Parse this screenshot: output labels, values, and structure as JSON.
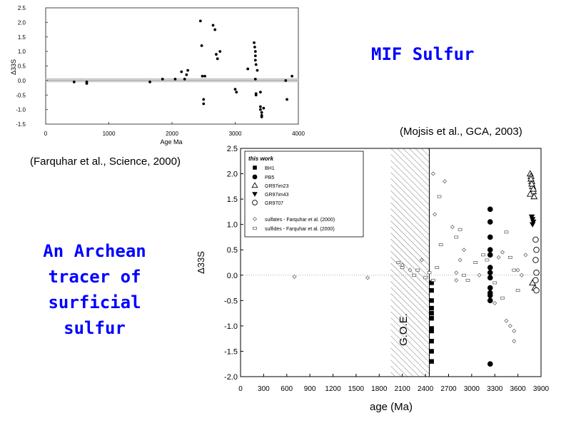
{
  "header": {
    "title": "MIF Sulfur"
  },
  "citations": {
    "mojsis": "(Mojsis et al., GCA, 2003)",
    "farquhar": "(Farquhar et al., Science, 2000)"
  },
  "tagline": {
    "line1": "An Archean",
    "line2": "tracer of",
    "line3": "surficial sulfur"
  },
  "colors": {
    "accent": "#0000ff"
  },
  "chart_data": [
    {
      "type": "scatter",
      "xlabel": "Age Ma",
      "ylabel": "Δ33S",
      "xlim": [
        0,
        4000
      ],
      "ylim": [
        -1.5,
        2.5
      ],
      "xticks": [
        "0",
        "1000",
        "2000",
        "3000",
        "4000"
      ],
      "yticks": [
        "-1.5",
        "-1.0",
        "-0.5",
        "0.0",
        "0.5",
        "1.0",
        "1.5",
        "2.0",
        "2.5"
      ],
      "series": [
        {
          "x": [
            450,
            650,
            650,
            1650,
            1850,
            2050,
            2150,
            2200,
            2230,
            2250,
            2450,
            2470,
            2480,
            2500,
            2500,
            2520,
            2650,
            2680,
            2700,
            2720,
            2760,
            3000,
            3020,
            3200,
            3300,
            3310,
            3320,
            3320,
            3320,
            3330,
            3320,
            3330,
            3330,
            3350,
            3400,
            3400,
            3400,
            3420,
            3420,
            3420,
            3450,
            3800,
            3820,
            3900
          ],
          "y": [
            -0.05,
            -0.05,
            -0.1,
            -0.05,
            0.05,
            0.05,
            0.3,
            0.05,
            0.2,
            0.35,
            2.05,
            1.2,
            0.15,
            -0.65,
            -0.8,
            0.15,
            1.9,
            1.75,
            0.9,
            0.75,
            1.0,
            -0.3,
            -0.4,
            0.4,
            1.3,
            1.15,
            1.0,
            0.85,
            0.7,
            0.55,
            0.05,
            -0.45,
            -0.5,
            0.35,
            -0.4,
            -0.9,
            -1.0,
            -1.1,
            -1.2,
            -1.25,
            -0.95,
            0.0,
            -0.65,
            0.15
          ]
        }
      ]
    },
    {
      "type": "scatter",
      "xlabel": "age (Ma)",
      "ylabel": "Δ33S",
      "xlim": [
        0,
        3900
      ],
      "ylim": [
        -2.0,
        2.5
      ],
      "xticks": [
        "0",
        "300",
        "600",
        "900",
        "1200",
        "1500",
        "1800",
        "2100",
        "2400",
        "2700",
        "3000",
        "3300",
        "3600",
        "3900"
      ],
      "yticks": [
        "-2.0",
        "-1.5",
        "-1.0",
        "-0.5",
        "0.0",
        "0.5",
        "1.0",
        "1.5",
        "2.0",
        "2.5"
      ],
      "band": {
        "from": 1950,
        "to": 2450,
        "label": "G.O.E."
      },
      "legend": {
        "heading": "this work",
        "entries": [
          {
            "label": "BH1",
            "marker": "square"
          },
          {
            "label": "PB5",
            "marker": "circle"
          },
          {
            "label": "GR97im23",
            "marker": "triangle-up"
          },
          {
            "label": "GR97im43",
            "marker": "triangle-down"
          },
          {
            "label": "GR9707",
            "marker": "circle-open"
          },
          {
            "label": "sulfates - Farquhar et al. (2000)",
            "marker": "diamond"
          },
          {
            "label": "sulfides - Farquhar et al. (2000)",
            "marker": "dash"
          }
        ]
      },
      "series": [
        {
          "name": "BH1",
          "x": [
            2480,
            2480,
            2480,
            2480,
            2480,
            2480,
            2480,
            2480,
            2480,
            2480,
            2480
          ],
          "y": [
            -0.15,
            -0.3,
            -0.5,
            -0.65,
            -0.75,
            -0.85,
            -1.05,
            -1.1,
            -1.3,
            -1.5,
            -1.7
          ]
        },
        {
          "name": "PB5",
          "x": [
            3240,
            3240,
            3240,
            3240,
            3240,
            3240,
            3240,
            3240,
            3240,
            3240,
            3240,
            3240,
            3240
          ],
          "y": [
            1.3,
            1.05,
            0.75,
            0.5,
            0.4,
            0.15,
            0.05,
            -0.05,
            -0.25,
            -0.35,
            -0.4,
            -0.5,
            -1.75
          ]
        },
        {
          "name": "GR97im23",
          "x": [
            3760,
            3770,
            3780,
            3790,
            3800,
            3760,
            3770,
            3780,
            3800,
            3810,
            3790,
            3820
          ],
          "y": [
            2.0,
            1.95,
            1.85,
            1.75,
            1.65,
            1.6,
            1.9,
            1.8,
            1.7,
            1.55,
            -0.15,
            -0.25
          ]
        },
        {
          "name": "GR97im43",
          "x": [
            3780,
            3790,
            3800,
            3790
          ],
          "y": [
            1.15,
            1.1,
            1.05,
            1.0
          ]
        },
        {
          "name": "GR9707",
          "x": [
            3830,
            3840,
            3830,
            3840,
            3830,
            3840
          ],
          "y": [
            0.7,
            0.5,
            0.3,
            0.05,
            -0.1,
            -0.3
          ]
        },
        {
          "name": "sulfates - Farquhar et al. (2000)",
          "x": [
            700,
            1650,
            2100,
            2200,
            2350,
            2500,
            2520,
            2650,
            2750,
            2800,
            2800,
            2850,
            2900,
            3100,
            3300,
            3350,
            3400,
            3450,
            3500,
            3550,
            3550,
            3600,
            3650,
            3700
          ],
          "y": [
            -0.03,
            -0.05,
            0.2,
            0.1,
            0.3,
            2.0,
            1.2,
            1.85,
            0.95,
            0.05,
            -0.1,
            0.3,
            0.5,
            0.0,
            -0.55,
            0.35,
            0.45,
            -0.9,
            -1.0,
            -1.1,
            -1.3,
            0.1,
            0.0,
            0.4
          ]
        },
        {
          "name": "sulfides - Farquhar et al. (2000)",
          "x": [
            2050,
            2100,
            2250,
            2300,
            2400,
            2450,
            2500,
            2550,
            2580,
            2600,
            2800,
            2850,
            2900,
            2950,
            3050,
            3150,
            3200,
            3300,
            3400,
            3450,
            3500,
            3550,
            3600
          ],
          "y": [
            0.25,
            0.15,
            0.0,
            0.1,
            -0.05,
            0.05,
            -0.1,
            0.15,
            1.55,
            0.6,
            0.75,
            0.9,
            0.0,
            -0.1,
            0.25,
            0.4,
            0.3,
            -0.15,
            -0.45,
            0.85,
            0.35,
            0.1,
            -0.3
          ]
        }
      ]
    }
  ]
}
